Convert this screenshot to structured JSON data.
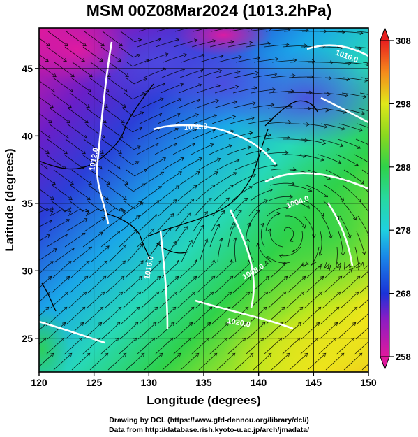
{
  "title": "MSM 00Z08Mar2024 (1013.2hPa)",
  "map": {
    "x_axis": {
      "label": "Longitude (degrees)",
      "range": [
        120,
        150
      ],
      "ticks": [
        "120",
        "125",
        "130",
        "135",
        "140",
        "145",
        "150"
      ]
    },
    "y_axis": {
      "label": "Latitude  (degrees)",
      "range": [
        22.5,
        48
      ],
      "ticks": [
        "25",
        "30",
        "35",
        "40",
        "45"
      ]
    },
    "grid": true,
    "contours": [
      "1012.0",
      "1016.0",
      "1012.0",
      "1008.0",
      "1004.0",
      "1020.0",
      "1016.0"
    ]
  },
  "colorbar": {
    "range": [
      258,
      308
    ],
    "ticks": [
      "258",
      "268",
      "278",
      "288",
      "298",
      "308"
    ],
    "colors": [
      "#e0199d",
      "#6a1ec8",
      "#1a33d8",
      "#1aa6e8",
      "#27d8b8",
      "#2fd24a",
      "#b8e81f",
      "#f3e51a",
      "#f58a1c",
      "#e81f1f"
    ]
  },
  "credits": {
    "line1": "Drawing by DCL (https://www.gfd-dennou.org/library/dcl/)",
    "line2": "Data from http://database.rish.kyoto-u.ac.jp/arch/jmadata/"
  }
}
